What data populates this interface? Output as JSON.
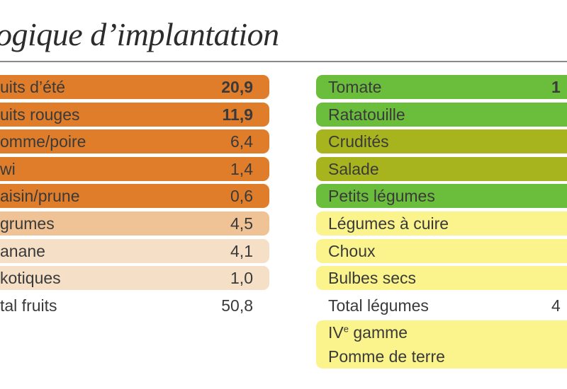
{
  "title": "ogique d’implantation",
  "colors": {
    "fruit_dark": "#e07d2a",
    "fruit_light": "#efc396",
    "fruit_pale": "#f5dfc6",
    "veg_green": "#6bbd3c",
    "veg_olive": "#a7b41e",
    "veg_yellow": "#fbf48c",
    "text": "#3a3a3a"
  },
  "fruits": {
    "rows": [
      {
        "label": "uits d’été",
        "value": "20,9",
        "bold": true,
        "color": "#e07d2a"
      },
      {
        "label": "uits rouges",
        "value": "11,9",
        "bold": true,
        "color": "#e07d2a"
      },
      {
        "label": "omme/poire",
        "value": "6,4",
        "bold": false,
        "color": "#e07d2a"
      },
      {
        "label": "wi",
        "value": "1,4",
        "bold": false,
        "color": "#e07d2a"
      },
      {
        "label": "aisin/prune",
        "value": "0,6",
        "bold": false,
        "color": "#e07d2a"
      },
      {
        "label": "grumes",
        "value": "4,5",
        "bold": false,
        "color": "#efc396"
      },
      {
        "label": "anane",
        "value": "4,1",
        "bold": false,
        "color": "#f5dfc6"
      },
      {
        "label": "kotiques",
        "value": "1,0",
        "bold": false,
        "color": "#f5dfc6"
      }
    ],
    "total": {
      "label": "tal fruits",
      "value": "50,8"
    }
  },
  "vegetables": {
    "rows": [
      {
        "label": "Tomate",
        "value": "1",
        "bold": true,
        "color": "#6bbd3c"
      },
      {
        "label": "Ratatouille",
        "value": "",
        "bold": false,
        "color": "#6bbd3c"
      },
      {
        "label": "Crudités",
        "value": "",
        "bold": false,
        "color": "#a7b41e"
      },
      {
        "label": "Salade",
        "value": "",
        "bold": false,
        "color": "#a7b41e"
      },
      {
        "label": "Petits légumes",
        "value": "",
        "bold": false,
        "color": "#6bbd3c"
      },
      {
        "label": "Légumes à cuire",
        "value": "",
        "bold": false,
        "color": "#fbf48c"
      },
      {
        "label": "Choux",
        "value": "",
        "bold": false,
        "color": "#fbf48c"
      },
      {
        "label": "Bulbes secs",
        "value": "",
        "bold": false,
        "color": "#fbf48c"
      }
    ],
    "total": {
      "label": "Total légumes",
      "value": "4"
    },
    "extra": [
      {
        "label": "IV",
        "sup": "e",
        "suffix": " gamme",
        "color": "#fbf48c"
      },
      {
        "label": "Pomme de terre",
        "sup": "",
        "suffix": "",
        "color": "#fbf48c"
      }
    ]
  }
}
